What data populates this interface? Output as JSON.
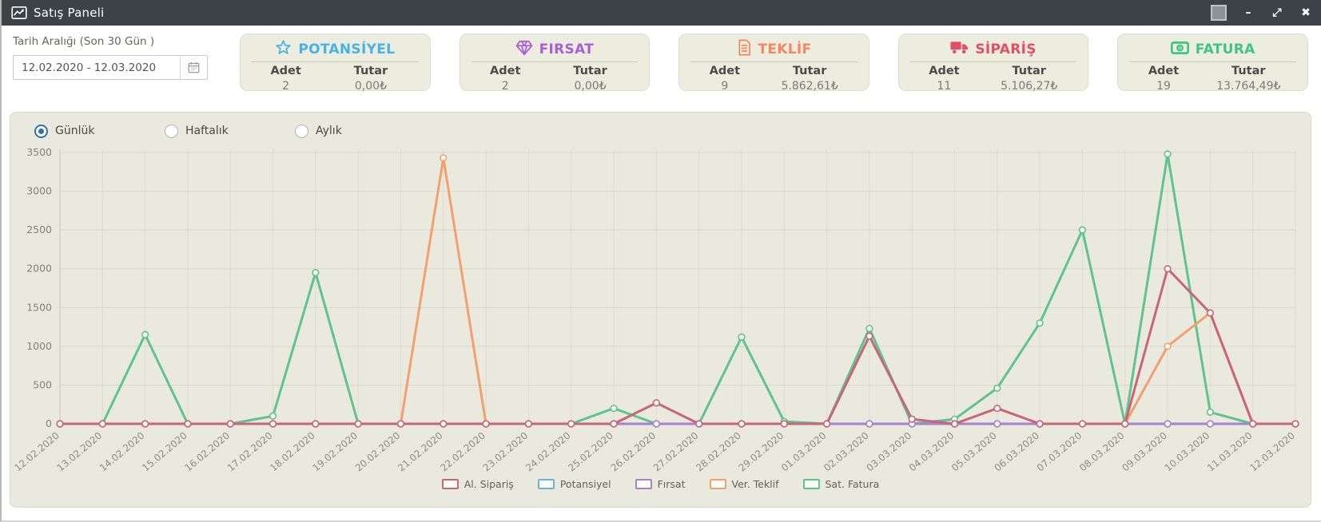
{
  "window": {
    "title": "Satış Paneli",
    "controls": {
      "minimize": "–",
      "fullscreen": "⤢",
      "close": "✖"
    }
  },
  "filters": {
    "date_label": "Tarih Aralığı (Son 30 Gün )",
    "date_value": "12.02.2020 - 12.03.2020"
  },
  "cards": [
    {
      "title": "POTANSİYEL",
      "icon": "star-icon",
      "color": "#47b2e8",
      "adet_label": "Adet",
      "tutar_label": "Tutar",
      "adet": "2",
      "tutar": "0,00₺"
    },
    {
      "title": "FIRSAT",
      "icon": "diamond-icon",
      "color": "#ab5fd6",
      "adet_label": "Adet",
      "tutar_label": "Tutar",
      "adet": "2",
      "tutar": "0,00₺"
    },
    {
      "title": "TEKLİF",
      "icon": "document-icon",
      "color": "#f4875f",
      "adet_label": "Adet",
      "tutar_label": "Tutar",
      "adet": "9",
      "tutar": "5.862,61₺"
    },
    {
      "title": "SİPARİŞ",
      "icon": "truck-icon",
      "color": "#e25068",
      "adet_label": "Adet",
      "tutar_label": "Tutar",
      "adet": "11",
      "tutar": "5.106,27₺"
    },
    {
      "title": "FATURA",
      "icon": "banknote-icon",
      "color": "#3fc487",
      "adet_label": "Adet",
      "tutar_label": "Tutar",
      "adet": "19",
      "tutar": "13.764,49₺"
    }
  ],
  "radios": [
    {
      "label": "Günlük",
      "selected": true
    },
    {
      "label": "Haftalık",
      "selected": false
    },
    {
      "label": "Aylık",
      "selected": false
    }
  ],
  "chart_data": {
    "type": "line",
    "title": "",
    "xlabel": "",
    "ylabel": "",
    "ylim": [
      0,
      3500
    ],
    "ytick_step": 500,
    "grid": true,
    "legend_position": "bottom",
    "x": [
      "12.02.2020",
      "13.02.2020",
      "14.02.2020",
      "15.02.2020",
      "16.02.2020",
      "17.02.2020",
      "18.02.2020",
      "19.02.2020",
      "20.02.2020",
      "21.02.2020",
      "22.02.2020",
      "23.02.2020",
      "24.02.2020",
      "25.02.2020",
      "26.02.2020",
      "27.02.2020",
      "28.02.2020",
      "29.02.2020",
      "01.03.2020",
      "02.03.2020",
      "03.03.2020",
      "04.03.2020",
      "05.03.2020",
      "06.03.2020",
      "07.03.2020",
      "08.03.2020",
      "09.03.2020",
      "10.03.2020",
      "11.03.2020",
      "12.03.2020"
    ],
    "series": [
      {
        "name": "Al. Sipariş",
        "color": "#c96579",
        "values": [
          0,
          0,
          0,
          0,
          0,
          0,
          0,
          0,
          0,
          0,
          0,
          0,
          0,
          0,
          270,
          0,
          0,
          0,
          0,
          1130,
          60,
          0,
          200,
          0,
          0,
          0,
          2000,
          1430,
          0,
          0
        ]
      },
      {
        "name": "Potansiyel",
        "color": "#66b3e3",
        "values": [
          0,
          0,
          0,
          0,
          0,
          0,
          0,
          0,
          0,
          0,
          0,
          0,
          0,
          0,
          0,
          0,
          0,
          0,
          0,
          0,
          0,
          0,
          0,
          0,
          0,
          0,
          0,
          0,
          0,
          0
        ]
      },
      {
        "name": "Fırsat",
        "color": "#a97fd1",
        "values": [
          0,
          0,
          0,
          0,
          0,
          0,
          0,
          0,
          0,
          0,
          0,
          0,
          0,
          0,
          0,
          0,
          0,
          0,
          0,
          0,
          0,
          0,
          0,
          0,
          0,
          0,
          0,
          0,
          0,
          0
        ]
      },
      {
        "name": "Ver. Teklif",
        "color": "#f2a06f",
        "values": [
          0,
          0,
          0,
          0,
          0,
          0,
          0,
          0,
          0,
          3430,
          0,
          0,
          0,
          0,
          0,
          0,
          0,
          0,
          0,
          0,
          0,
          0,
          0,
          0,
          0,
          0,
          1000,
          1430,
          0,
          0
        ]
      },
      {
        "name": "Sat. Fatura",
        "color": "#5ec38f",
        "values": [
          0,
          0,
          1150,
          0,
          0,
          100,
          1950,
          0,
          0,
          0,
          0,
          0,
          0,
          200,
          0,
          0,
          1120,
          30,
          0,
          1230,
          0,
          60,
          460,
          1300,
          2500,
          0,
          3480,
          150,
          0,
          0
        ]
      }
    ]
  }
}
